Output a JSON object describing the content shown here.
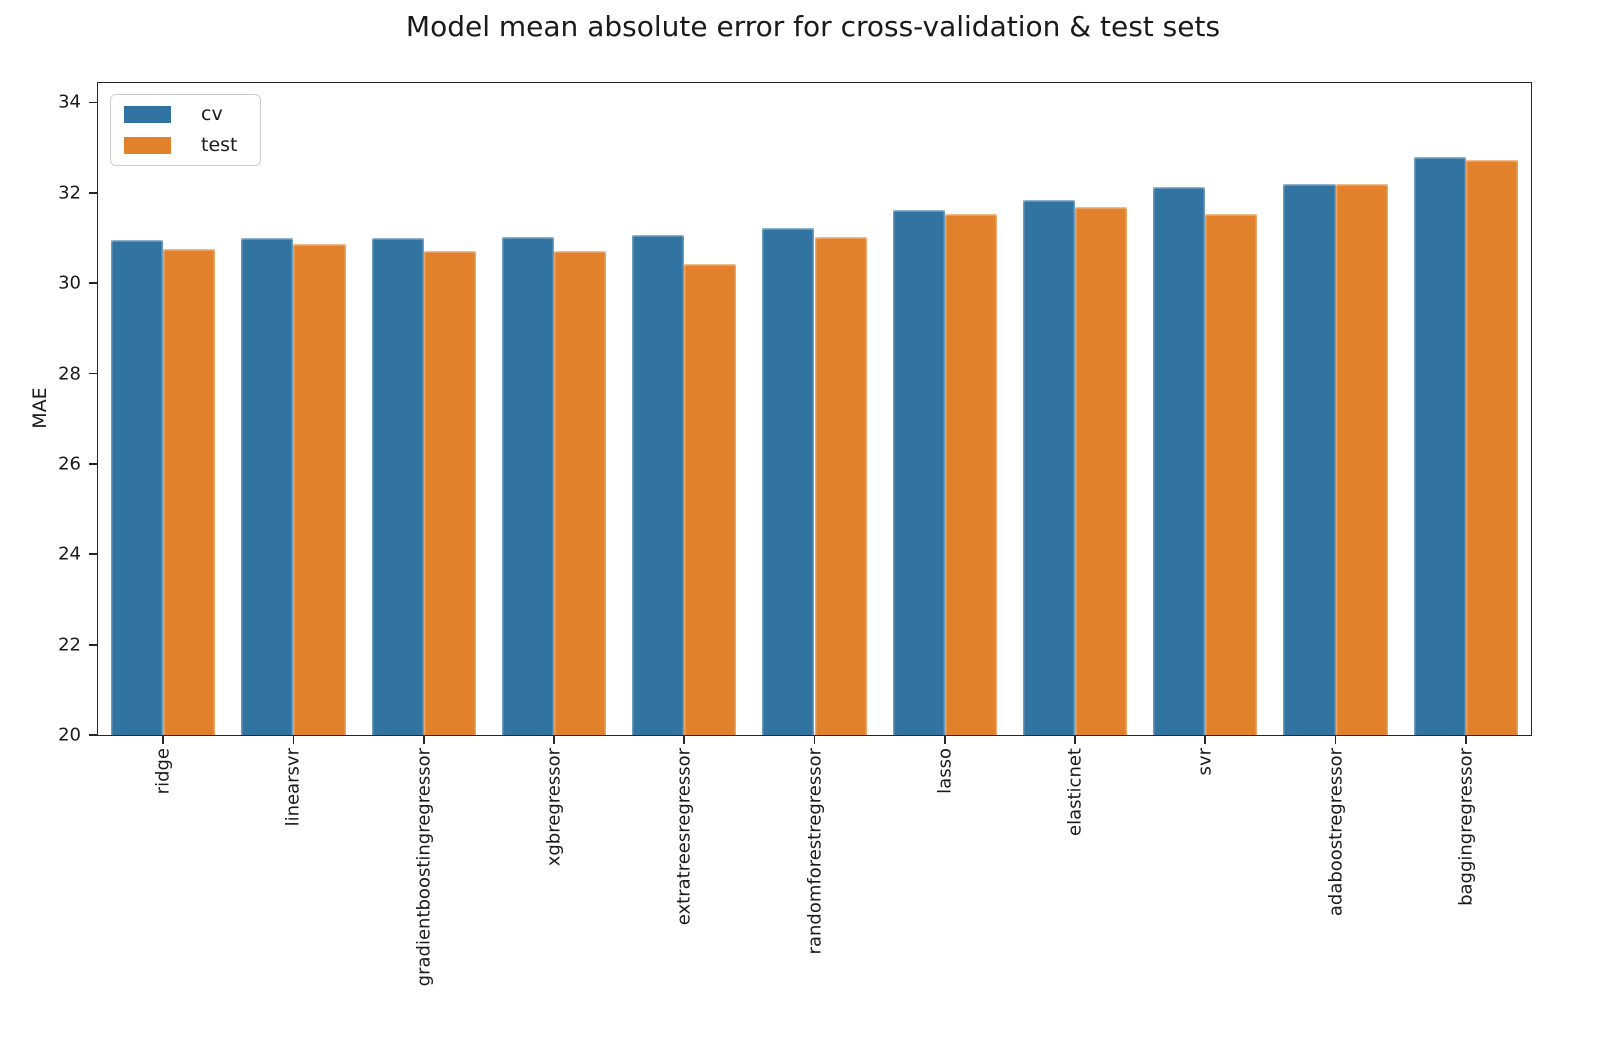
{
  "chart_data": {
    "type": "bar",
    "title": "Model mean absolute error for cross-validation & test sets",
    "xlabel": "",
    "ylabel": "MAE",
    "ylim": [
      20,
      34.43
    ],
    "yticks": [
      20,
      22,
      24,
      26,
      28,
      30,
      32,
      34
    ],
    "grid": false,
    "legend_position": "upper left",
    "tick_label_rotation": 90,
    "bar_group_width": 0.8,
    "categories": [
      "ridge",
      "linearsvr",
      "gradientboostingregressor",
      "xgbregressor",
      "extratreesregressor",
      "randomforestregressor",
      "lasso",
      "elasticnet",
      "svr",
      "adaboostregressor",
      "baggingregressor"
    ],
    "series": [
      {
        "name": "cv",
        "color": "#3274a1",
        "values": [
          30.95,
          31.0,
          31.0,
          31.02,
          31.06,
          31.23,
          31.62,
          31.85,
          32.12,
          32.2,
          32.8
        ]
      },
      {
        "name": "test",
        "color": "#e1812c",
        "values": [
          30.75,
          30.87,
          30.72,
          30.72,
          30.42,
          31.02,
          31.54,
          31.68,
          31.54,
          32.19,
          32.72
        ]
      }
    ]
  },
  "colors": {
    "background": "#ffffff",
    "spine": "#262626",
    "text": "#1a1a1a",
    "legend_border": "#cccccc"
  }
}
